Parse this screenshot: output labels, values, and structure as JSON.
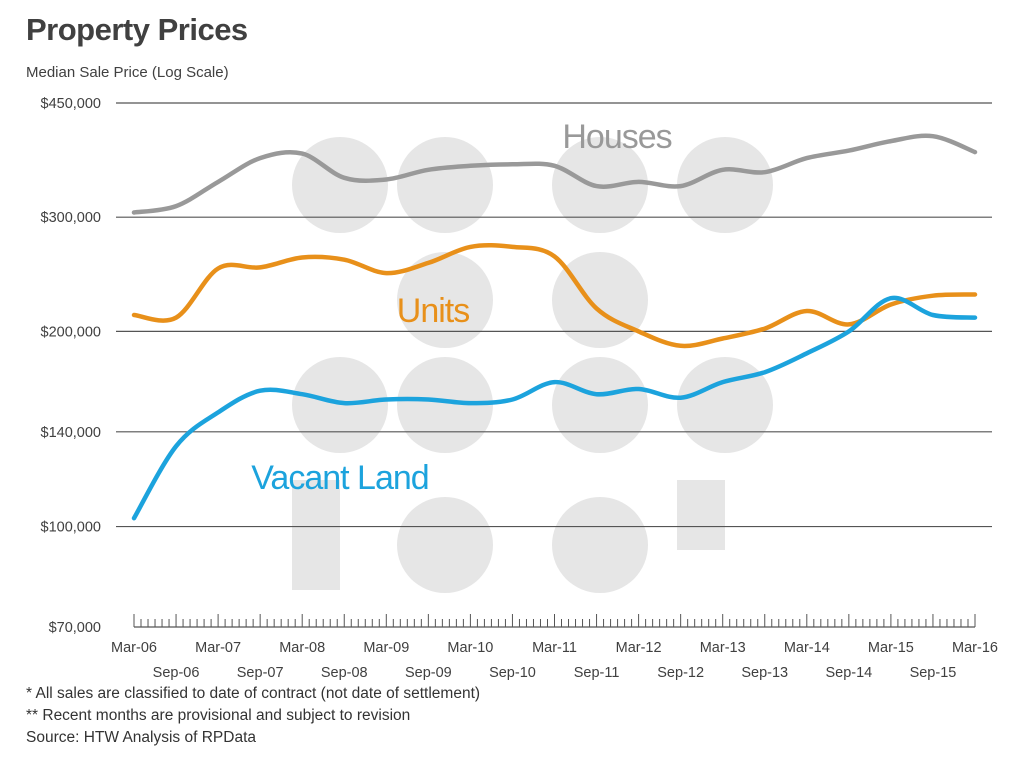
{
  "title": "Property Prices",
  "subtitle": "Median Sale Price (Log Scale)",
  "notes": [
    "* All sales are classified to date of contract (not date of settlement)",
    "** Recent months are provisional and subject to revision",
    "Source: HTW Analysis of RPData"
  ],
  "colors": {
    "houses": "#999999",
    "units": "#E8901A",
    "vacant_land": "#1CA3DD",
    "grid": "#555555",
    "watermark": "#E6E6E6"
  },
  "chart_data": {
    "type": "line",
    "title": "Property Prices",
    "ylabel": "Median Sale Price (Log Scale)",
    "y_scale": "log",
    "ylim": [
      70000,
      450000
    ],
    "yticks": [
      70000,
      100000,
      140000,
      200000,
      300000,
      450000
    ],
    "ytick_labels": [
      "$70,000",
      "$100,000",
      "$140,000",
      "$200,000",
      "$300,000",
      "$450,000"
    ],
    "xlim": [
      "2006-03",
      "2016-03"
    ],
    "xticks_top": [
      "Mar-06",
      "Mar-07",
      "Mar-08",
      "Mar-09",
      "Mar-10",
      "Mar-11",
      "Mar-12",
      "Mar-13",
      "Mar-14",
      "Mar-15",
      "Mar-16"
    ],
    "xticks_bottom": [
      "Sep-06",
      "Sep-07",
      "Sep-08",
      "Sep-09",
      "Sep-10",
      "Sep-11",
      "Sep-12",
      "Sep-13",
      "Sep-14",
      "Sep-15"
    ],
    "grid": true,
    "legend": "inline labels",
    "series": [
      {
        "name": "Houses",
        "x": [
          "2006-03",
          "2006-09",
          "2007-03",
          "2007-09",
          "2008-03",
          "2008-09",
          "2009-03",
          "2009-09",
          "2010-03",
          "2010-09",
          "2011-03",
          "2011-09",
          "2012-03",
          "2012-09",
          "2013-03",
          "2013-09",
          "2014-03",
          "2014-09",
          "2015-03",
          "2015-09",
          "2016-03"
        ],
        "values": [
          305000,
          312000,
          340000,
          370000,
          376000,
          345000,
          343000,
          355000,
          360000,
          362000,
          360000,
          335000,
          340000,
          335000,
          355000,
          352000,
          370000,
          380000,
          393000,
          400000,
          378000
        ]
      },
      {
        "name": "Units",
        "x": [
          "2006-03",
          "2006-09",
          "2007-03",
          "2007-09",
          "2008-03",
          "2008-09",
          "2009-03",
          "2009-09",
          "2010-03",
          "2010-09",
          "2011-03",
          "2011-09",
          "2012-03",
          "2012-09",
          "2013-03",
          "2013-09",
          "2014-03",
          "2014-09",
          "2015-03",
          "2015-09",
          "2016-03"
        ],
        "values": [
          212000,
          210000,
          250000,
          251000,
          260000,
          258000,
          246000,
          255000,
          270000,
          270000,
          261000,
          217000,
          200000,
          190000,
          195000,
          202000,
          215000,
          205000,
          220000,
          227000,
          228000
        ]
      },
      {
        "name": "Vacant Land",
        "x": [
          "2006-03",
          "2006-09",
          "2007-03",
          "2007-09",
          "2008-03",
          "2008-09",
          "2009-03",
          "2009-09",
          "2010-03",
          "2010-09",
          "2011-03",
          "2011-09",
          "2012-03",
          "2012-09",
          "2013-03",
          "2013-09",
          "2014-03",
          "2014-09",
          "2015-03",
          "2015-09",
          "2016-03"
        ],
        "values": [
          103000,
          133000,
          150000,
          162000,
          160000,
          155000,
          157000,
          157000,
          155000,
          157000,
          167000,
          160000,
          163000,
          158000,
          167000,
          173000,
          185000,
          200000,
          225000,
          212000,
          210000
        ]
      }
    ]
  }
}
